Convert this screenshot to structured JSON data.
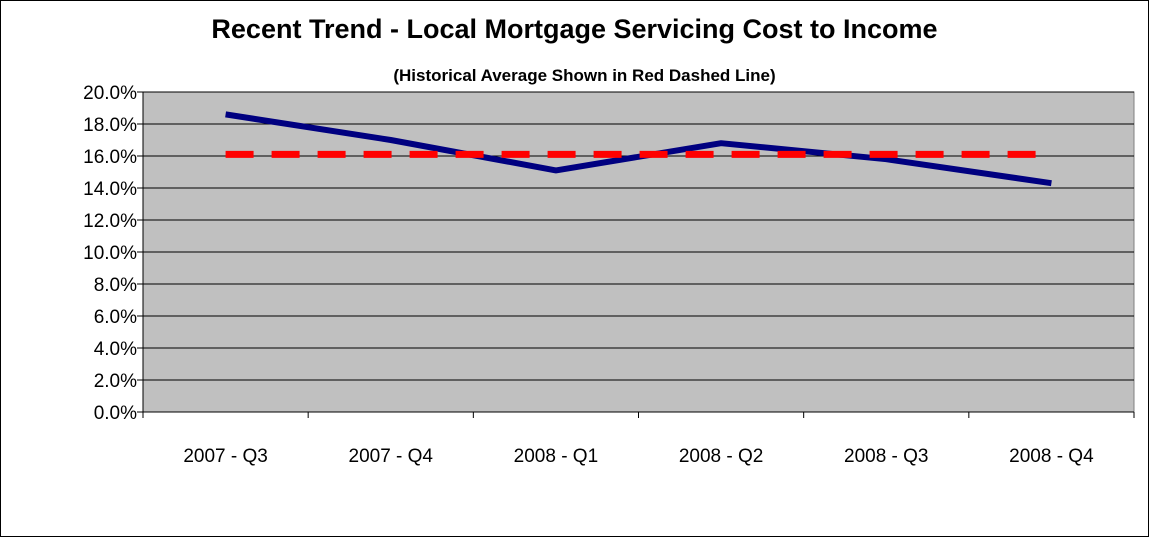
{
  "chart_data": {
    "type": "line",
    "title": "Recent Trend - Local Mortgage Servicing Cost to Income",
    "subtitle": "(Historical Average Shown in Red Dashed Line)",
    "categories": [
      "2007 - Q3",
      "2007 - Q4",
      "2008 - Q1",
      "2008 - Q2",
      "2008 - Q3",
      "2008 - Q4"
    ],
    "series": [
      {
        "values": [
          18.6,
          17.0,
          15.1,
          16.8,
          15.8,
          14.3
        ],
        "color": "#000080",
        "style": "solid"
      },
      {
        "values": [
          16.1,
          16.1,
          16.1,
          16.1,
          16.1,
          16.1
        ],
        "color": "#ff0000",
        "style": "dashed"
      }
    ],
    "y_ticks": [
      "0.0%",
      "2.0%",
      "4.0%",
      "6.0%",
      "8.0%",
      "10.0%",
      "12.0%",
      "14.0%",
      "16.0%",
      "18.0%",
      "20.0%"
    ],
    "ylim": [
      0,
      20
    ],
    "grid": true,
    "plot_background": "#c0c0c0"
  }
}
